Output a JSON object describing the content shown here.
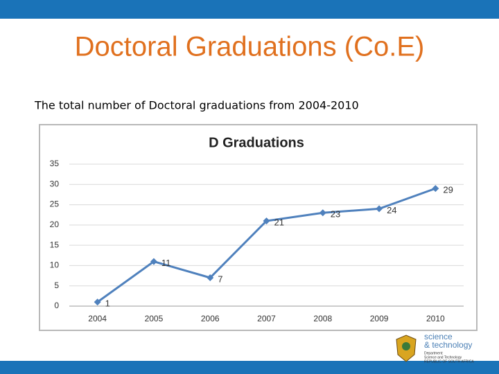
{
  "slide_title": "Doctoral Graduations (Co.E)",
  "subtitle": "The total number of Doctoral graduations from 2004-2010",
  "logo": {
    "line1": "science",
    "line2": "& technology",
    "line3": "Department:",
    "line4": "Science and Technology",
    "line5": "REPUBLIC OF SOUTH AFRICA"
  },
  "chart_data": {
    "type": "line",
    "title": "D Graduations",
    "categories": [
      "2004",
      "2005",
      "2006",
      "2007",
      "2008",
      "2009",
      "2010"
    ],
    "values": [
      1,
      11,
      7,
      21,
      23,
      24,
      29
    ],
    "color": "#4f81bd",
    "ylim": [
      0,
      35
    ],
    "yticks": [
      0,
      5,
      10,
      15,
      20,
      25,
      30,
      35
    ],
    "grid": true
  }
}
